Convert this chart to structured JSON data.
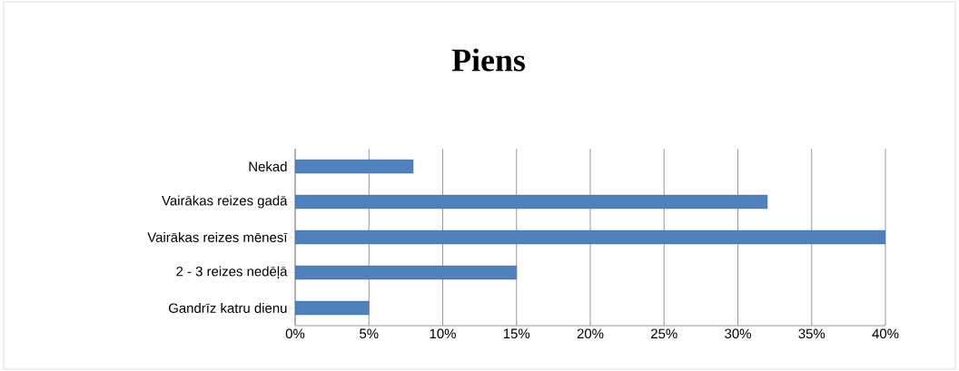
{
  "chart_data": {
    "type": "bar",
    "orientation": "horizontal",
    "title": "Piens",
    "categories": [
      "Nekad",
      "Vairākas reizes gadā",
      "Vairākas reizes mēnesī",
      "2 - 3 reizes nedēļā",
      "Gandrīz katru dienu"
    ],
    "values": [
      8,
      32,
      40,
      15,
      5
    ],
    "color": "#4f81bd",
    "xlim": [
      0,
      40
    ],
    "xticks": [
      {
        "value": 0,
        "label": "0%"
      },
      {
        "value": 5,
        "label": "5%"
      },
      {
        "value": 10,
        "label": "10%"
      },
      {
        "value": 15,
        "label": "15%"
      },
      {
        "value": 20,
        "label": "20%"
      },
      {
        "value": 25,
        "label": "25%"
      },
      {
        "value": 30,
        "label": "30%"
      },
      {
        "value": 35,
        "label": "35%"
      },
      {
        "value": 40,
        "label": "40%"
      }
    ],
    "grid": "x",
    "legend": false
  }
}
